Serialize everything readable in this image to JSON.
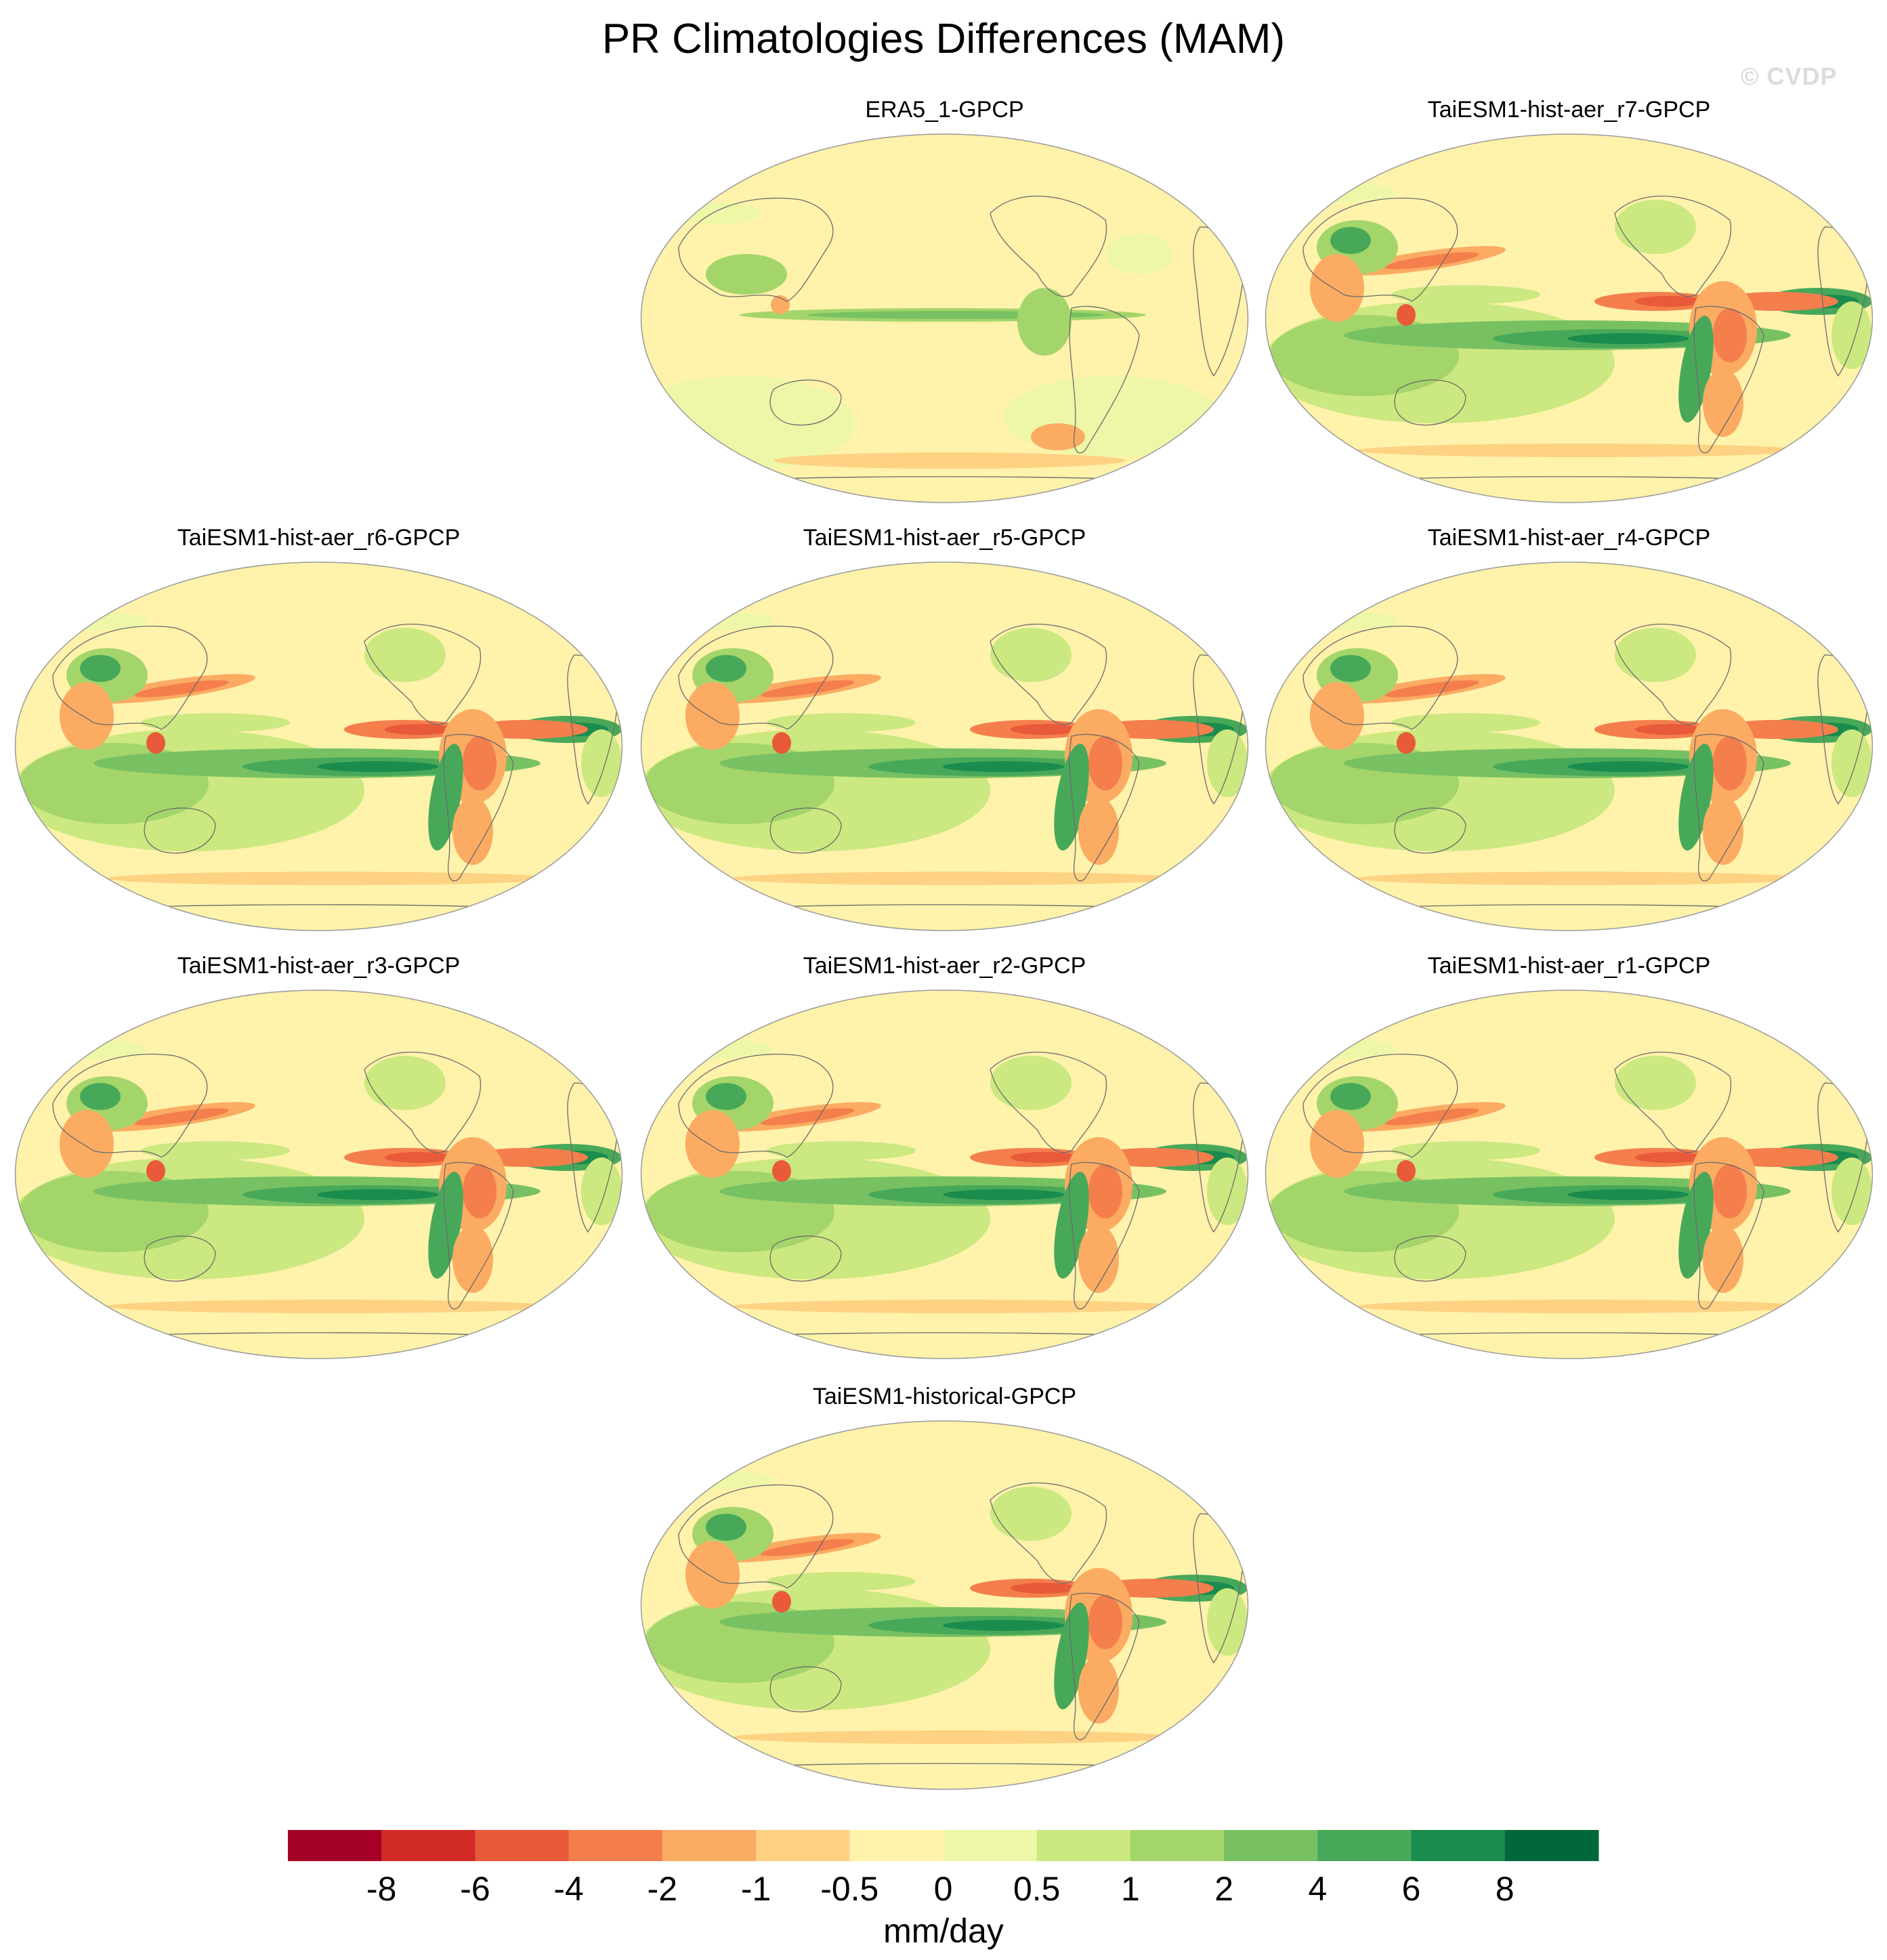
{
  "figure": {
    "title": "PR Climatologies Differences (MAM)",
    "watermark": "© CVDP"
  },
  "panels": [
    {
      "id": "era5",
      "label": "ERA5_1-GPCP",
      "type": "obs"
    },
    {
      "id": "r7",
      "label": "TaiESM1-hist-aer_r7-GPCP",
      "type": "model"
    },
    {
      "id": "r6",
      "label": "TaiESM1-hist-aer_r6-GPCP",
      "type": "model"
    },
    {
      "id": "r5",
      "label": "TaiESM1-hist-aer_r5-GPCP",
      "type": "model"
    },
    {
      "id": "r4",
      "label": "TaiESM1-hist-aer_r4-GPCP",
      "type": "model"
    },
    {
      "id": "r3",
      "label": "TaiESM1-hist-aer_r3-GPCP",
      "type": "model"
    },
    {
      "id": "r2",
      "label": "TaiESM1-hist-aer_r2-GPCP",
      "type": "model"
    },
    {
      "id": "r1",
      "label": "TaiESM1-hist-aer_r1-GPCP",
      "type": "model"
    },
    {
      "id": "hist",
      "label": "TaiESM1-historical-GPCP",
      "type": "model"
    }
  ],
  "colorbar": {
    "units": "mm/day",
    "tick_labels": [
      "-8",
      "-6",
      "-4",
      "-2",
      "-1",
      "-0.5",
      "0",
      "0.5",
      "1",
      "2",
      "4",
      "6",
      "8"
    ],
    "colors": [
      "#a50026",
      "#d22b26",
      "#e85a3a",
      "#f47e4c",
      "#fbab62",
      "#fdd283",
      "#fff2ab",
      "#eef7a8",
      "#cce880",
      "#a4d56a",
      "#78c163",
      "#48a859",
      "#198c4e",
      "#00683a"
    ]
  }
}
